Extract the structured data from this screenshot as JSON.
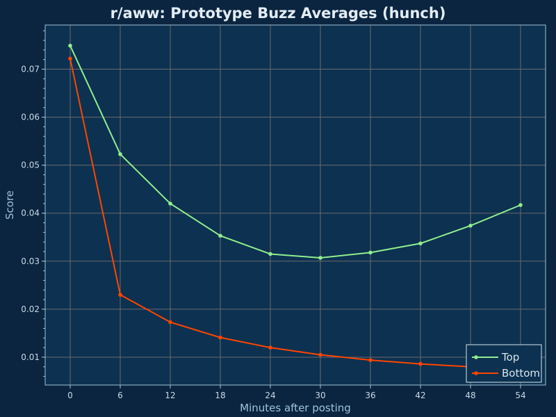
{
  "chart_data": {
    "type": "line",
    "title": "r/aww: Prototype Buzz Averages (hunch)",
    "xlabel": "Minutes after posting",
    "ylabel": "Score",
    "x": [
      0,
      6,
      12,
      18,
      24,
      30,
      36,
      42,
      48,
      54
    ],
    "x_ticks": [
      0,
      6,
      12,
      18,
      24,
      30,
      36,
      42,
      48,
      54
    ],
    "y_ticks": [
      0.01,
      0.02,
      0.03,
      0.04,
      0.05,
      0.06,
      0.07
    ],
    "xlim": [
      -3,
      57
    ],
    "ylim": [
      0.0042,
      0.0792
    ],
    "grid": true,
    "legend_position": "bottom-right",
    "series": [
      {
        "name": "Top",
        "color": "#90ee90",
        "values": [
          0.0749,
          0.0523,
          0.042,
          0.0353,
          0.0315,
          0.0307,
          0.0318,
          0.0337,
          0.0374,
          0.0417
        ]
      },
      {
        "name": "Bottom",
        "color": "#ff4500",
        "values": [
          0.0722,
          0.023,
          0.0173,
          0.0141,
          0.012,
          0.0105,
          0.0094,
          0.0086,
          0.008,
          0.0075
        ]
      }
    ]
  },
  "colors": {
    "background": "#0b2540",
    "plot_background": "#0d3150",
    "grid": "#6b6b6b",
    "axis": "#9fc3dd"
  }
}
